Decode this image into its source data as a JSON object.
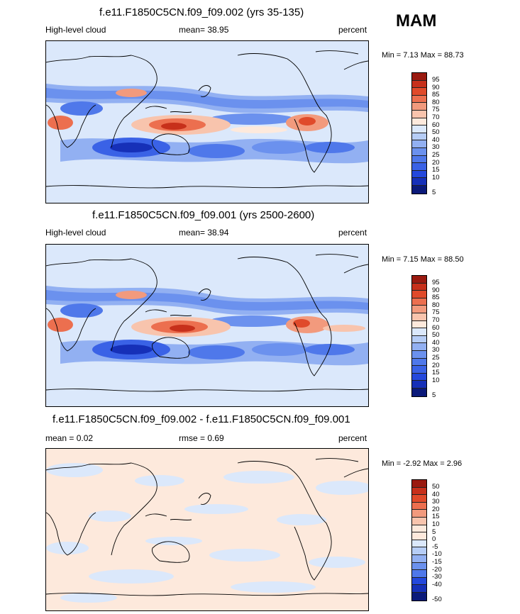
{
  "header": {
    "season": "MAM"
  },
  "panels": [
    {
      "title": "f.e11.F1850C5CN.f09_f09.002 (yrs 35-135)",
      "left": "High-level cloud",
      "center": "mean=  38.95",
      "right": "percent",
      "minmax": "Min =  7.13 Max =  88.73",
      "kind": "abs"
    },
    {
      "title": "f.e11.F1850C5CN.f09_f09.001 (yrs 2500-2600)",
      "left": "High-level cloud",
      "center": "mean=  38.94",
      "right": "percent",
      "minmax": "Min =  7.15 Max =  88.50",
      "kind": "abs"
    },
    {
      "title": "f.e11.F1850C5CN.f09_f09.002 - f.e11.F1850C5CN.f09_f09.001",
      "left": "mean =  0.02",
      "center": "rmse =  0.69",
      "right": "percent",
      "minmax": "Min = -2.92 Max =  2.96",
      "kind": "diff"
    }
  ],
  "chart_data": [
    {
      "type": "heatmap",
      "title": "f.e11.F1850C5CN.f09_f09.002 (yrs 35-135)",
      "variable": "High-level cloud",
      "units": "percent",
      "season": "MAM",
      "mean": 38.95,
      "min": 7.13,
      "max": 88.73,
      "colorbar_levels": [
        5,
        10,
        15,
        20,
        25,
        30,
        40,
        50,
        60,
        70,
        75,
        80,
        85,
        90,
        95
      ]
    },
    {
      "type": "heatmap",
      "title": "f.e11.F1850C5CN.f09_f09.001 (yrs 2500-2600)",
      "variable": "High-level cloud",
      "units": "percent",
      "season": "MAM",
      "mean": 38.94,
      "min": 7.15,
      "max": 88.5,
      "colorbar_levels": [
        5,
        10,
        15,
        20,
        25,
        30,
        40,
        50,
        60,
        70,
        75,
        80,
        85,
        90,
        95
      ]
    },
    {
      "type": "heatmap",
      "title": "f.e11.F1850C5CN.f09_f09.002 - f.e11.F1850C5CN.f09_f09.001",
      "units": "percent",
      "season": "MAM",
      "mean": 0.02,
      "rmse": 0.69,
      "min": -2.92,
      "max": 2.96,
      "colorbar_levels": [
        -50,
        -40,
        -30,
        -20,
        -15,
        -10,
        -5,
        0,
        5,
        10,
        15,
        20,
        30,
        40,
        50
      ]
    }
  ],
  "colors": {
    "abs": [
      "#0b1a7a",
      "#1630b8",
      "#2448dc",
      "#3a62e6",
      "#4f78ea",
      "#6b91ee",
      "#92b0f2",
      "#b6cdf6",
      "#dbe8fb",
      "#fde9dc",
      "#f8c4ad",
      "#f29a7d",
      "#ec6f4f",
      "#e04a2a",
      "#c7301b",
      "#9a1a10"
    ],
    "diff": [
      "#0b1a7a",
      "#1630b8",
      "#2448dc",
      "#3a62e6",
      "#4f78ea",
      "#6b91ee",
      "#92b0f2",
      "#b6cdf6",
      "#dbe8fb",
      "#fde9dc",
      "#f8c4ad",
      "#f29a7d",
      "#ec6f4f",
      "#e04a2a",
      "#c7301b",
      "#9a1a10"
    ]
  }
}
